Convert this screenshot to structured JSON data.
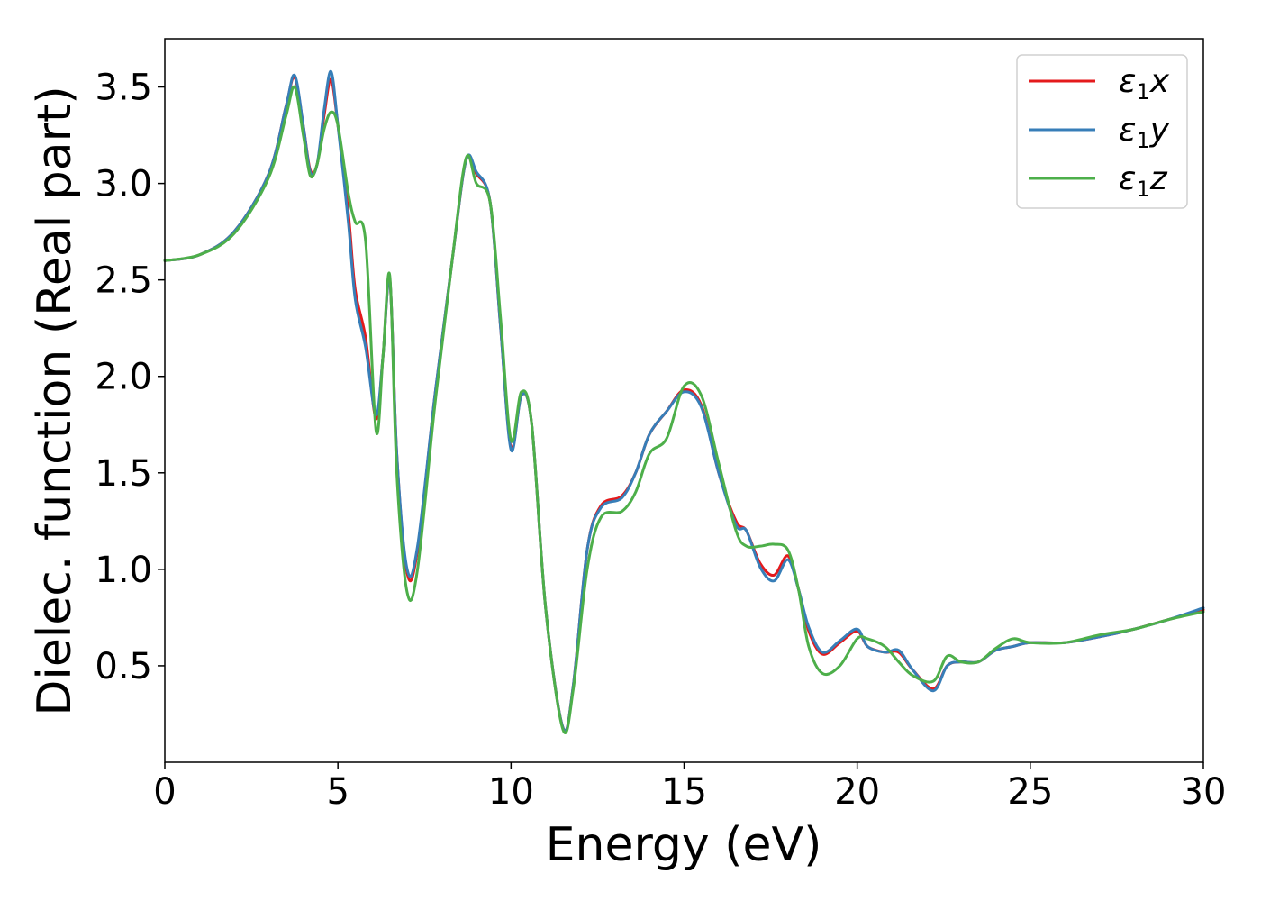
{
  "chart_data": {
    "type": "line",
    "title": "",
    "xlabel": "Energy (eV)",
    "ylabel": "Dielec. function (Real part)",
    "xlim": [
      0,
      30
    ],
    "ylim": [
      0.0,
      3.75
    ],
    "xticks": [
      "0",
      "5",
      "10",
      "15",
      "20",
      "25",
      "30"
    ],
    "yticks": [
      "0.5",
      "1.0",
      "1.5",
      "2.0",
      "2.5",
      "3.0",
      "3.5"
    ],
    "grid": false,
    "legend_position": "top-right",
    "series": [
      {
        "name": "ε1x",
        "color": "#e41a1c",
        "points": [
          [
            0,
            2.6
          ],
          [
            1,
            2.63
          ],
          [
            2,
            2.75
          ],
          [
            3,
            3.05
          ],
          [
            3.5,
            3.4
          ],
          [
            3.75,
            3.55
          ],
          [
            4.0,
            3.3
          ],
          [
            4.2,
            3.07
          ],
          [
            4.4,
            3.1
          ],
          [
            4.6,
            3.35
          ],
          [
            4.8,
            3.54
          ],
          [
            5.0,
            3.3
          ],
          [
            5.3,
            2.85
          ],
          [
            5.5,
            2.45
          ],
          [
            5.8,
            2.2
          ],
          [
            6.1,
            1.78
          ],
          [
            6.3,
            2.1
          ],
          [
            6.5,
            2.5
          ],
          [
            6.7,
            1.6
          ],
          [
            7.0,
            0.98
          ],
          [
            7.3,
            1.1
          ],
          [
            7.8,
            1.9
          ],
          [
            8.3,
            2.6
          ],
          [
            8.7,
            3.12
          ],
          [
            9.0,
            3.05
          ],
          [
            9.4,
            2.9
          ],
          [
            9.7,
            2.25
          ],
          [
            10.0,
            1.63
          ],
          [
            10.3,
            1.9
          ],
          [
            10.6,
            1.75
          ],
          [
            11.0,
            0.8
          ],
          [
            11.5,
            0.18
          ],
          [
            11.8,
            0.4
          ],
          [
            12.2,
            1.1
          ],
          [
            12.6,
            1.33
          ],
          [
            13.2,
            1.38
          ],
          [
            13.6,
            1.5
          ],
          [
            14.0,
            1.7
          ],
          [
            14.5,
            1.82
          ],
          [
            15.0,
            1.93
          ],
          [
            15.5,
            1.85
          ],
          [
            16.0,
            1.5
          ],
          [
            16.5,
            1.25
          ],
          [
            16.8,
            1.2
          ],
          [
            17.2,
            1.03
          ],
          [
            17.6,
            0.97
          ],
          [
            18.0,
            1.07
          ],
          [
            18.3,
            0.9
          ],
          [
            18.6,
            0.68
          ],
          [
            19.0,
            0.56
          ],
          [
            19.5,
            0.62
          ],
          [
            20.0,
            0.68
          ],
          [
            20.3,
            0.6
          ],
          [
            20.8,
            0.57
          ],
          [
            21.2,
            0.57
          ],
          [
            21.6,
            0.48
          ],
          [
            22.2,
            0.38
          ],
          [
            22.6,
            0.5
          ],
          [
            23.0,
            0.52
          ],
          [
            23.5,
            0.52
          ],
          [
            24.0,
            0.58
          ],
          [
            24.5,
            0.6
          ],
          [
            25.0,
            0.62
          ],
          [
            26.0,
            0.62
          ],
          [
            27.0,
            0.65
          ],
          [
            28.0,
            0.69
          ],
          [
            29.0,
            0.74
          ],
          [
            30.0,
            0.79
          ]
        ]
      },
      {
        "name": "ε1y",
        "color": "#377eb8",
        "points": [
          [
            0,
            2.6
          ],
          [
            1,
            2.63
          ],
          [
            2,
            2.75
          ],
          [
            3,
            3.05
          ],
          [
            3.5,
            3.4
          ],
          [
            3.75,
            3.56
          ],
          [
            4.0,
            3.3
          ],
          [
            4.2,
            3.06
          ],
          [
            4.4,
            3.1
          ],
          [
            4.6,
            3.38
          ],
          [
            4.8,
            3.58
          ],
          [
            5.0,
            3.3
          ],
          [
            5.3,
            2.8
          ],
          [
            5.5,
            2.4
          ],
          [
            5.8,
            2.15
          ],
          [
            6.1,
            1.8
          ],
          [
            6.3,
            2.1
          ],
          [
            6.5,
            2.5
          ],
          [
            6.7,
            1.6
          ],
          [
            7.0,
            1.0
          ],
          [
            7.3,
            1.12
          ],
          [
            7.8,
            1.9
          ],
          [
            8.3,
            2.6
          ],
          [
            8.7,
            3.12
          ],
          [
            9.0,
            3.06
          ],
          [
            9.4,
            2.9
          ],
          [
            9.7,
            2.25
          ],
          [
            10.0,
            1.62
          ],
          [
            10.3,
            1.9
          ],
          [
            10.6,
            1.75
          ],
          [
            11.0,
            0.8
          ],
          [
            11.5,
            0.18
          ],
          [
            11.8,
            0.4
          ],
          [
            12.2,
            1.1
          ],
          [
            12.6,
            1.32
          ],
          [
            13.2,
            1.37
          ],
          [
            13.6,
            1.5
          ],
          [
            14.0,
            1.7
          ],
          [
            14.5,
            1.82
          ],
          [
            15.0,
            1.92
          ],
          [
            15.5,
            1.84
          ],
          [
            16.0,
            1.5
          ],
          [
            16.5,
            1.23
          ],
          [
            16.8,
            1.2
          ],
          [
            17.2,
            1.01
          ],
          [
            17.6,
            0.94
          ],
          [
            18.0,
            1.05
          ],
          [
            18.3,
            0.9
          ],
          [
            18.6,
            0.7
          ],
          [
            19.0,
            0.57
          ],
          [
            19.5,
            0.63
          ],
          [
            20.0,
            0.69
          ],
          [
            20.3,
            0.6
          ],
          [
            20.8,
            0.57
          ],
          [
            21.2,
            0.58
          ],
          [
            21.6,
            0.48
          ],
          [
            22.2,
            0.37
          ],
          [
            22.6,
            0.5
          ],
          [
            23.0,
            0.52
          ],
          [
            23.5,
            0.52
          ],
          [
            24.0,
            0.58
          ],
          [
            24.5,
            0.6
          ],
          [
            25.0,
            0.62
          ],
          [
            26.0,
            0.62
          ],
          [
            27.0,
            0.65
          ],
          [
            28.0,
            0.69
          ],
          [
            29.0,
            0.74
          ],
          [
            30.0,
            0.8
          ]
        ]
      },
      {
        "name": "ε1z",
        "color": "#4daf4a",
        "points": [
          [
            0,
            2.6
          ],
          [
            1,
            2.63
          ],
          [
            2,
            2.74
          ],
          [
            3,
            3.03
          ],
          [
            3.5,
            3.35
          ],
          [
            3.75,
            3.5
          ],
          [
            4.0,
            3.25
          ],
          [
            4.2,
            3.04
          ],
          [
            4.4,
            3.1
          ],
          [
            4.6,
            3.28
          ],
          [
            4.8,
            3.37
          ],
          [
            5.0,
            3.3
          ],
          [
            5.3,
            2.95
          ],
          [
            5.5,
            2.8
          ],
          [
            5.8,
            2.7
          ],
          [
            6.1,
            1.72
          ],
          [
            6.3,
            2.1
          ],
          [
            6.5,
            2.52
          ],
          [
            6.7,
            1.5
          ],
          [
            7.0,
            0.88
          ],
          [
            7.3,
            1.0
          ],
          [
            7.8,
            1.85
          ],
          [
            8.3,
            2.6
          ],
          [
            8.7,
            3.13
          ],
          [
            9.0,
            3.0
          ],
          [
            9.4,
            2.9
          ],
          [
            9.7,
            2.3
          ],
          [
            10.0,
            1.67
          ],
          [
            10.3,
            1.92
          ],
          [
            10.6,
            1.75
          ],
          [
            11.0,
            0.8
          ],
          [
            11.5,
            0.17
          ],
          [
            11.8,
            0.38
          ],
          [
            12.2,
            1.0
          ],
          [
            12.6,
            1.27
          ],
          [
            13.2,
            1.3
          ],
          [
            13.6,
            1.4
          ],
          [
            14.0,
            1.6
          ],
          [
            14.5,
            1.68
          ],
          [
            15.0,
            1.95
          ],
          [
            15.5,
            1.9
          ],
          [
            16.0,
            1.55
          ],
          [
            16.5,
            1.2
          ],
          [
            16.8,
            1.12
          ],
          [
            17.2,
            1.12
          ],
          [
            17.6,
            1.13
          ],
          [
            18.0,
            1.1
          ],
          [
            18.3,
            0.9
          ],
          [
            18.6,
            0.6
          ],
          [
            19.0,
            0.46
          ],
          [
            19.5,
            0.5
          ],
          [
            20.0,
            0.64
          ],
          [
            20.3,
            0.64
          ],
          [
            20.8,
            0.6
          ],
          [
            21.2,
            0.52
          ],
          [
            21.6,
            0.45
          ],
          [
            22.2,
            0.42
          ],
          [
            22.6,
            0.55
          ],
          [
            23.0,
            0.52
          ],
          [
            23.5,
            0.52
          ],
          [
            24.0,
            0.59
          ],
          [
            24.5,
            0.64
          ],
          [
            25.0,
            0.62
          ],
          [
            26.0,
            0.62
          ],
          [
            27.0,
            0.66
          ],
          [
            28.0,
            0.69
          ],
          [
            29.0,
            0.74
          ],
          [
            30.0,
            0.78
          ]
        ]
      }
    ]
  }
}
